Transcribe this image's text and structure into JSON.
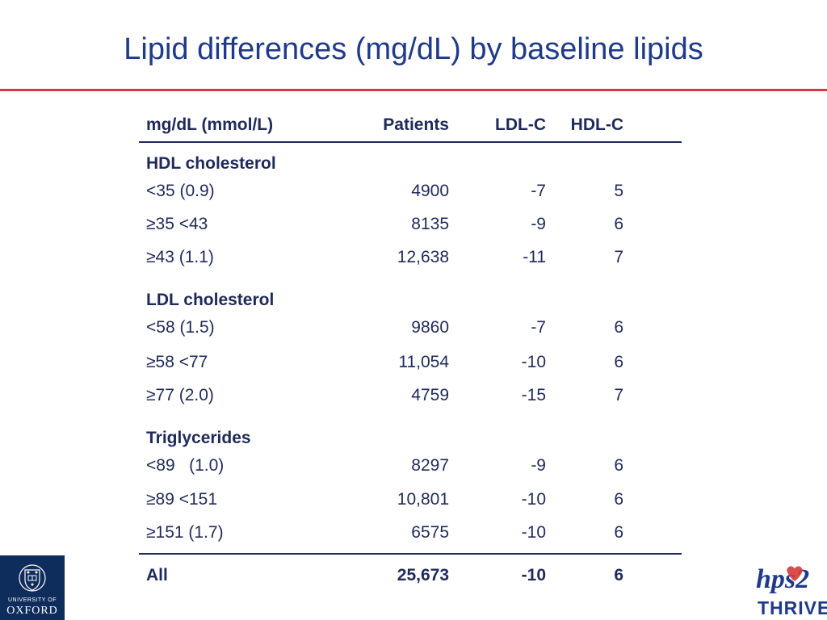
{
  "slide": {
    "title": "Lipid differences (mg/dL) by baseline lipids"
  },
  "table": {
    "headers": {
      "c0": "mg/dL (mmol/L)",
      "c1": "Patients",
      "c2": "LDL-C",
      "c3": "HDL-C"
    },
    "hdl_section": "HDL cholesterol",
    "hdl_rows": [
      {
        "label": "<35 (0.9)",
        "patients": "4900",
        "ldl": "-7",
        "hdl": "5"
      },
      {
        "label": "≥35 <43",
        "patients": "8135",
        "ldl": "-9",
        "hdl": "6"
      },
      {
        "label": "≥43 (1.1)",
        "patients": "12,638",
        "ldl": "-11",
        "hdl": "7"
      }
    ],
    "ldl_section": "LDL cholesterol",
    "ldl_rows": [
      {
        "label": "<58 (1.5)",
        "patients": "9860",
        "ldl": "-7",
        "hdl": "6"
      },
      {
        "label": "≥58 <77",
        "patients": "11,054",
        "ldl": "-10",
        "hdl": "6"
      },
      {
        "label": "≥77 (2.0)",
        "patients": "4759",
        "ldl": "-15",
        "hdl": "7"
      }
    ],
    "tg_section": "Triglycerides",
    "tg_rows": [
      {
        "label": "<89   (1.0)",
        "patients": "8297",
        "ldl": "-9",
        "hdl": "6"
      },
      {
        "label": "≥89 <151",
        "patients": "10,801",
        "ldl": "-10",
        "hdl": "6"
      },
      {
        "label": "≥151 (1.7)",
        "patients": "6575",
        "ldl": "-10",
        "hdl": "6"
      }
    ],
    "total": {
      "label": "All",
      "patients": "25,673",
      "ldl": "-10",
      "hdl": "6"
    }
  },
  "logos": {
    "oxford_line1": "UNIVERSITY OF",
    "oxford_line2": "OXFORD",
    "thrive_mark": "hps2",
    "thrive_word": "THRIVE"
  },
  "colors": {
    "title": "#1f3a8a",
    "rule": "#d63a3a",
    "text": "#1f2a5a",
    "oxford_bg": "#0f2d5c"
  }
}
